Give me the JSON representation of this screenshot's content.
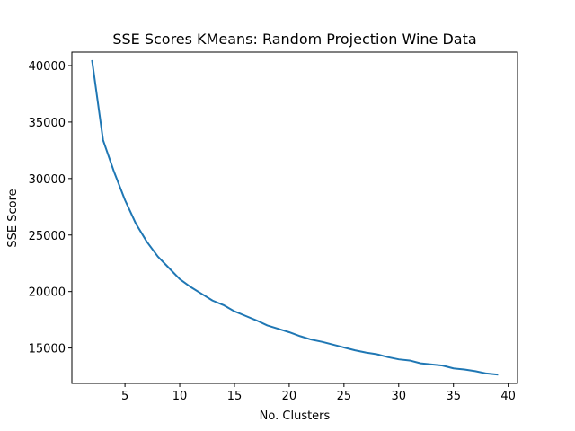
{
  "chart_data": {
    "type": "line",
    "title": "SSE Scores KMeans: Random Projection Wine Data",
    "xlabel": "No. Clusters",
    "ylabel": "SSE Score",
    "xlim": [
      0.15,
      40.85
    ],
    "ylim": [
      11870,
      41190
    ],
    "xticks": [
      5,
      10,
      15,
      20,
      25,
      30,
      35,
      40
    ],
    "yticks": [
      15000,
      20000,
      25000,
      30000,
      35000,
      40000
    ],
    "grid": false,
    "line_color": "#1f77b4",
    "series": [
      {
        "x": [
          2,
          3,
          4,
          5,
          6,
          7,
          8,
          9,
          10,
          11,
          12,
          13,
          14,
          15,
          16,
          17,
          18,
          19,
          20,
          21,
          22,
          23,
          24,
          25,
          26,
          27,
          28,
          29,
          30,
          31,
          32,
          33,
          34,
          35,
          36,
          37,
          38,
          39
        ],
        "values": [
          40400,
          33400,
          30600,
          28100,
          26000,
          24400,
          23100,
          22100,
          21100,
          20400,
          19800,
          19200,
          18800,
          18250,
          17850,
          17450,
          17000,
          16700,
          16400,
          16050,
          15750,
          15550,
          15300,
          15050,
          14800,
          14600,
          14450,
          14200,
          14000,
          13900,
          13650,
          13550,
          13450,
          13200,
          13100,
          12950,
          12750,
          12650
        ]
      }
    ]
  }
}
